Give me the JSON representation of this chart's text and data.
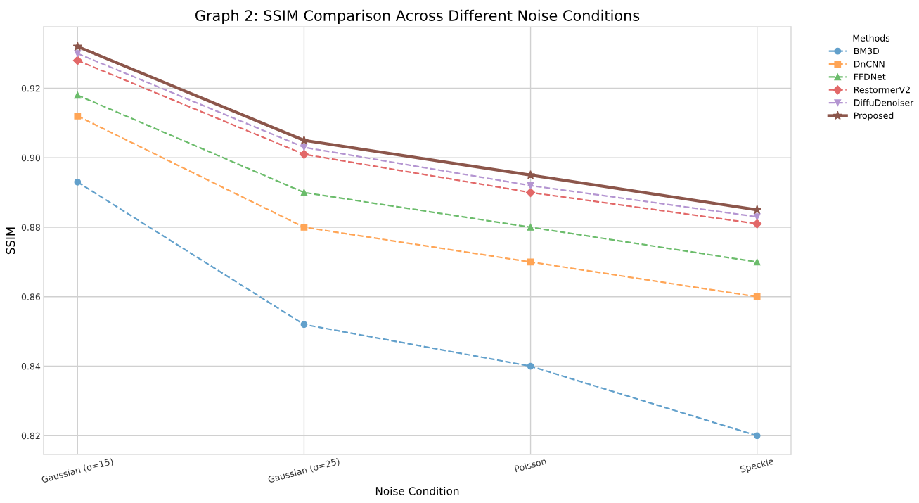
{
  "chart_data": {
    "type": "line",
    "title": "Graph 2: SSIM Comparison Across Different Noise Conditions",
    "xlabel": "Noise Condition",
    "ylabel": "SSIM",
    "legend_title": "Methods",
    "categories": [
      "Gaussian (σ=15)",
      "Gaussian (σ=25)",
      "Poisson",
      "Speckle"
    ],
    "series": [
      {
        "name": "BM3D",
        "color": "#62a0cb",
        "marker": "circle",
        "line_style": "dashed",
        "values": [
          0.893,
          0.852,
          0.84,
          0.82
        ]
      },
      {
        "name": "DnCNN",
        "color": "#ffa556",
        "marker": "square",
        "line_style": "dashed",
        "values": [
          0.912,
          0.88,
          0.87,
          0.86
        ]
      },
      {
        "name": "FFDNet",
        "color": "#6bbc6b",
        "marker": "triangle",
        "line_style": "dashed",
        "values": [
          0.918,
          0.89,
          0.88,
          0.87
        ]
      },
      {
        "name": "RestormerV2",
        "color": "#e26868",
        "marker": "diamond",
        "line_style": "dashed",
        "values": [
          0.928,
          0.901,
          0.89,
          0.881
        ]
      },
      {
        "name": "DiffuDenoiser",
        "color": "#b495d1",
        "marker": "triangle_down",
        "line_style": "dashed",
        "values": [
          0.93,
          0.903,
          0.892,
          0.883
        ]
      },
      {
        "name": "Proposed",
        "color": "#8c564b",
        "marker": "star",
        "line_style": "solid",
        "values": [
          0.932,
          0.905,
          0.895,
          0.885
        ]
      }
    ],
    "ylim": [
      0.8146,
      0.9377
    ],
    "yticks": [
      {
        "value": 0.82,
        "label": "0.82"
      },
      {
        "value": 0.84,
        "label": "0.84"
      },
      {
        "value": 0.86,
        "label": "0.86"
      },
      {
        "value": 0.88,
        "label": "0.88"
      },
      {
        "value": 0.9,
        "label": "0.90"
      },
      {
        "value": 0.92,
        "label": "0.92"
      }
    ],
    "grid": true,
    "legend": "top right"
  }
}
